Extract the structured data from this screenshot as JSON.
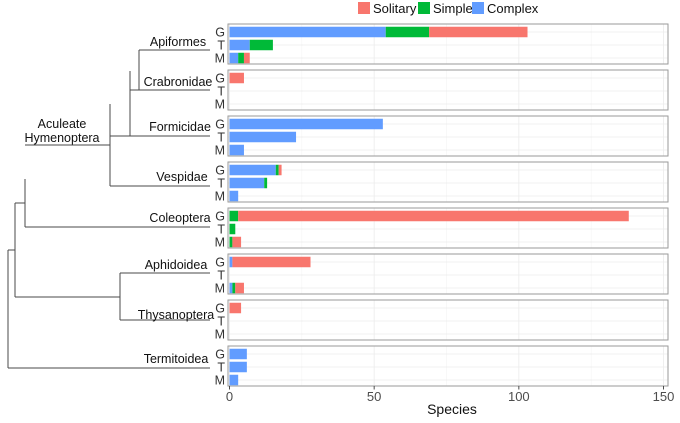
{
  "chart_data": {
    "type": "bar",
    "orientation": "horizontal",
    "stacked": true,
    "xlabel": "Species",
    "xlim": [
      0,
      150
    ],
    "xticks": [
      0,
      50,
      100,
      150
    ],
    "grid": true,
    "legend_position": "top",
    "row_labels": [
      "G",
      "T",
      "M"
    ],
    "series": [
      {
        "name": "Complex",
        "color": "#619CFF"
      },
      {
        "name": "Simple",
        "color": "#00BA38"
      },
      {
        "name": "Solitary",
        "color": "#F8766D"
      }
    ],
    "legend_order": [
      "Solitary",
      "Simple",
      "Complex"
    ],
    "panels": [
      {
        "taxon": "Apiformes",
        "rows": [
          {
            "row": "G",
            "Complex": 54,
            "Simple": 15,
            "Solitary": 34
          },
          {
            "row": "T",
            "Complex": 7,
            "Simple": 8,
            "Solitary": 0
          },
          {
            "row": "M",
            "Complex": 3,
            "Simple": 2,
            "Solitary": 2
          }
        ]
      },
      {
        "taxon": "Crabronidae",
        "rows": [
          {
            "row": "G",
            "Complex": 0,
            "Simple": 0,
            "Solitary": 5
          },
          {
            "row": "T",
            "Complex": 0,
            "Simple": 0,
            "Solitary": 0
          },
          {
            "row": "M",
            "Complex": 0,
            "Simple": 0,
            "Solitary": 0
          }
        ]
      },
      {
        "taxon": "Formicidae",
        "rows": [
          {
            "row": "G",
            "Complex": 53,
            "Simple": 0,
            "Solitary": 0
          },
          {
            "row": "T",
            "Complex": 23,
            "Simple": 0,
            "Solitary": 0
          },
          {
            "row": "M",
            "Complex": 5,
            "Simple": 0,
            "Solitary": 0
          }
        ]
      },
      {
        "taxon": "Vespidae",
        "rows": [
          {
            "row": "G",
            "Complex": 16,
            "Simple": 1,
            "Solitary": 1
          },
          {
            "row": "T",
            "Complex": 12,
            "Simple": 1,
            "Solitary": 0
          },
          {
            "row": "M",
            "Complex": 3,
            "Simple": 0,
            "Solitary": 0
          }
        ]
      },
      {
        "taxon": "Coleoptera",
        "rows": [
          {
            "row": "G",
            "Complex": 0,
            "Simple": 3,
            "Solitary": 135
          },
          {
            "row": "T",
            "Complex": 0,
            "Simple": 2,
            "Solitary": 0
          },
          {
            "row": "M",
            "Complex": 0,
            "Simple": 1,
            "Solitary": 3
          }
        ]
      },
      {
        "taxon": "Aphidoidea",
        "rows": [
          {
            "row": "G",
            "Complex": 1,
            "Simple": 0,
            "Solitary": 27
          },
          {
            "row": "T",
            "Complex": 0,
            "Simple": 0,
            "Solitary": 0
          },
          {
            "row": "M",
            "Complex": 1,
            "Simple": 1,
            "Solitary": 3
          }
        ]
      },
      {
        "taxon": "Thysanoptera",
        "rows": [
          {
            "row": "G",
            "Complex": 0,
            "Simple": 0,
            "Solitary": 4
          },
          {
            "row": "T",
            "Complex": 0,
            "Simple": 0,
            "Solitary": 0
          },
          {
            "row": "M",
            "Complex": 0,
            "Simple": 0,
            "Solitary": 0
          }
        ]
      },
      {
        "taxon": "Termitoidea",
        "rows": [
          {
            "row": "G",
            "Complex": 6,
            "Simple": 0,
            "Solitary": 0
          },
          {
            "row": "T",
            "Complex": 6,
            "Simple": 0,
            "Solitary": 0
          },
          {
            "row": "M",
            "Complex": 3,
            "Simple": 0,
            "Solitary": 0
          }
        ]
      }
    ],
    "tree_labels": {
      "aculeate": [
        "Aculeate",
        "Hymenoptera"
      ]
    }
  }
}
